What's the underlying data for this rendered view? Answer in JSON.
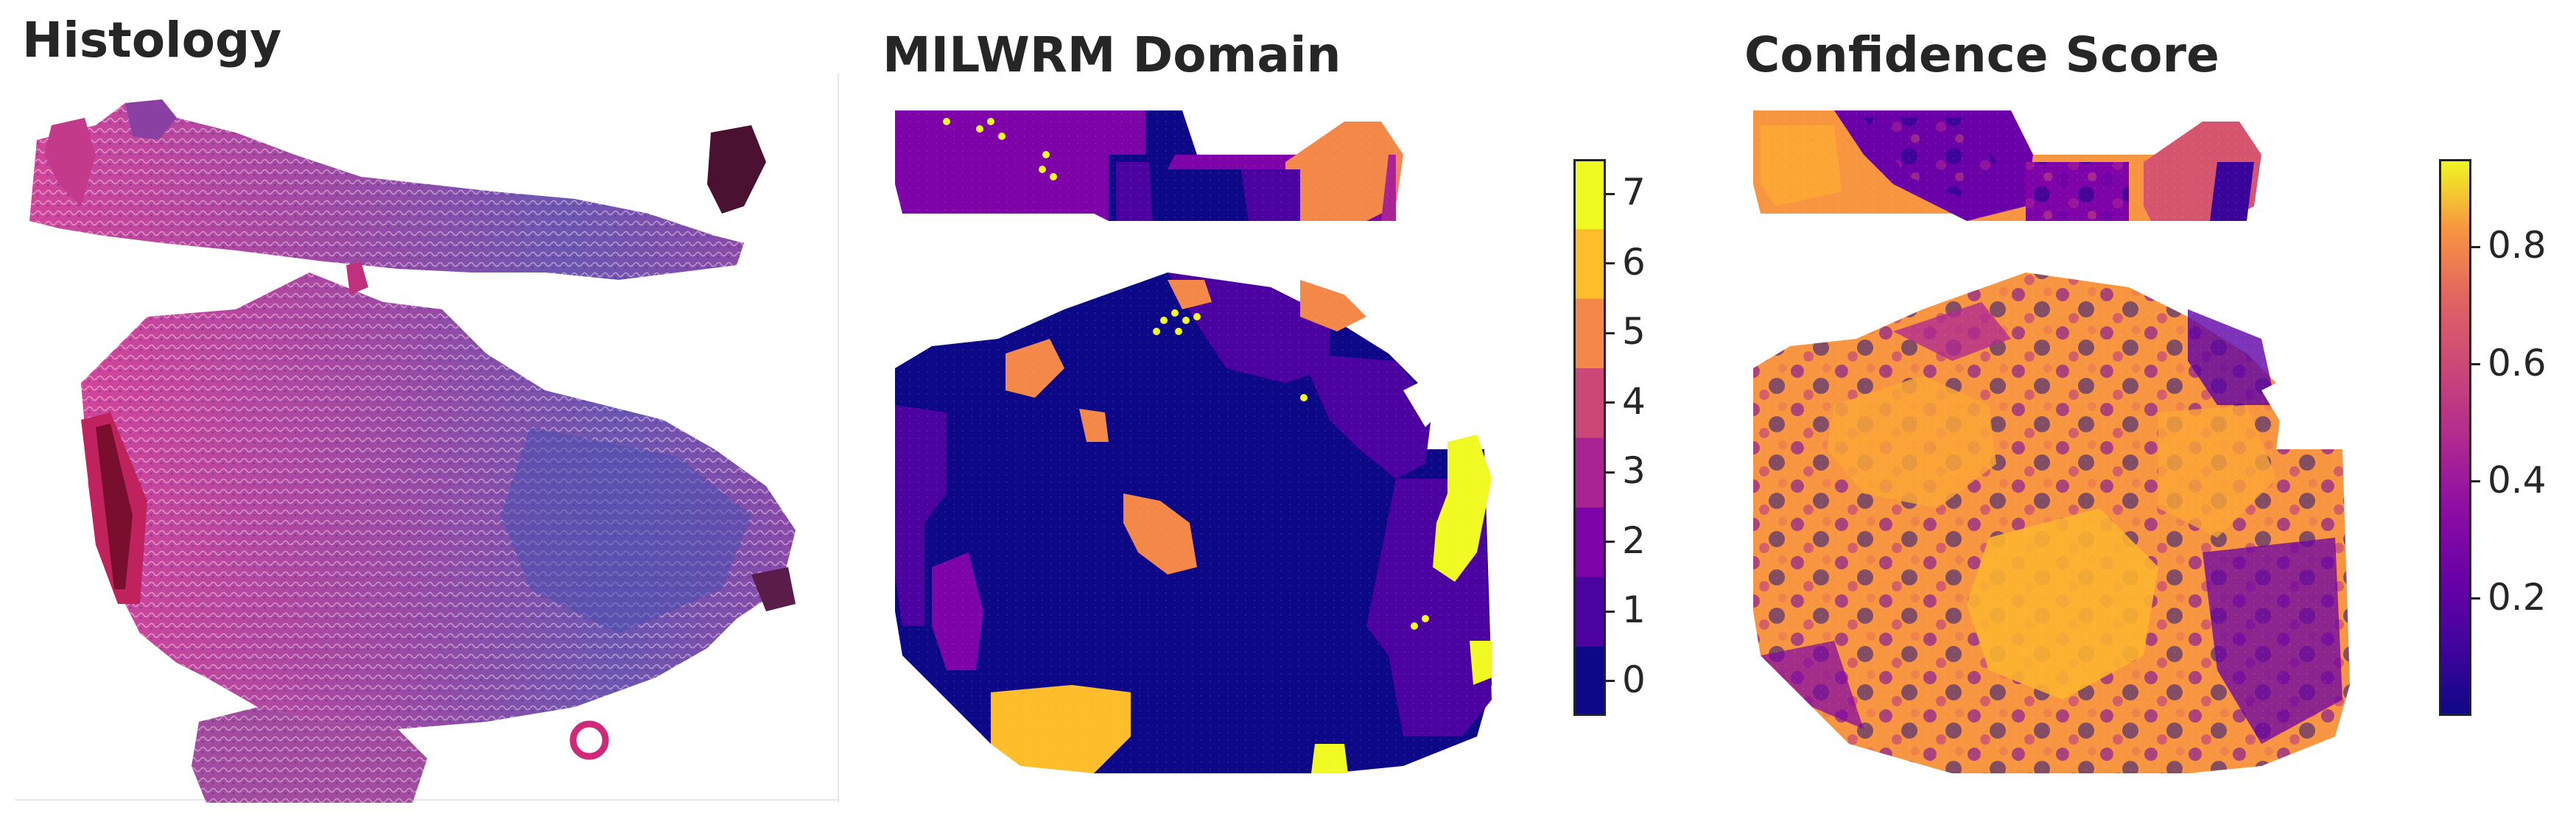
{
  "panels": {
    "histology": {
      "title": "Histology"
    },
    "domain": {
      "title": "MILWRM Domain"
    },
    "confidence": {
      "title": "Confidence Score"
    }
  },
  "chart_data": [
    {
      "type": "other",
      "title": "Histology"
    },
    {
      "type": "heatmap",
      "title": "MILWRM Domain",
      "colorbar": {
        "kind": "categorical",
        "range": [
          -0.5,
          7.5
        ],
        "ticks": [
          0,
          1,
          2,
          3,
          4,
          5,
          6,
          7
        ],
        "tick_labels": [
          "0",
          "1",
          "2",
          "3",
          "4",
          "5",
          "6",
          "7"
        ],
        "colors": [
          "#0d0887",
          "#4c02a1",
          "#7e03a8",
          "#a92395",
          "#cc4778",
          "#f48849",
          "#febd2a",
          "#f0f921"
        ]
      }
    },
    {
      "type": "heatmap",
      "title": "Confidence Score",
      "colorbar": {
        "kind": "continuous",
        "colormap": "plasma",
        "range": [
          0.0,
          0.95
        ],
        "ticks": [
          0.2,
          0.4,
          0.6,
          0.8
        ],
        "tick_labels": [
          "0.2",
          "0.4",
          "0.6",
          "0.8"
        ]
      }
    }
  ]
}
